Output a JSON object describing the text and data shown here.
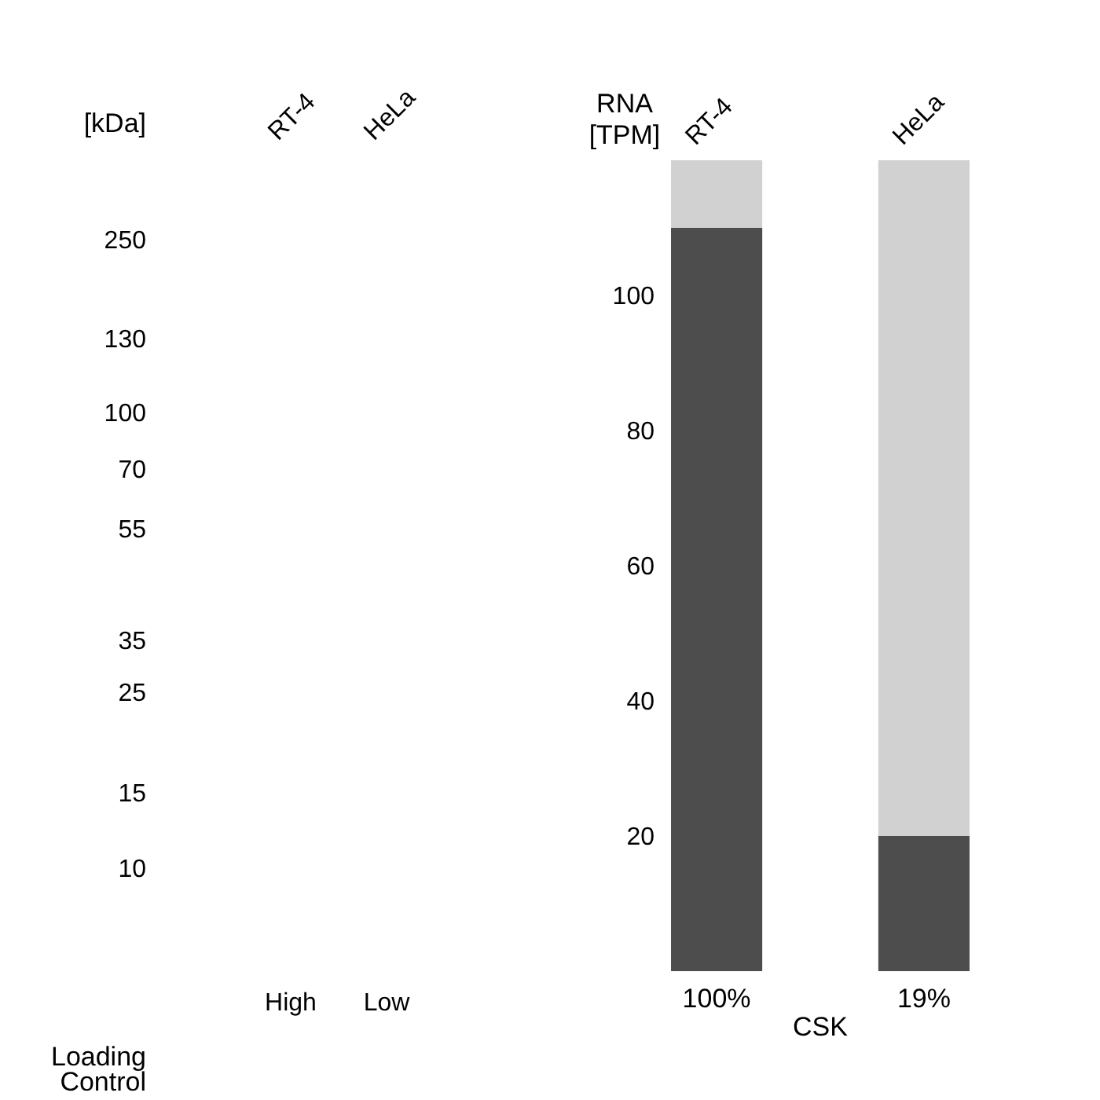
{
  "chart_data": [
    {
      "type": "other",
      "ylabel": "[kDa]",
      "categories": [
        "RT-4",
        "HeLa"
      ],
      "value_labels": [
        "High",
        "Low"
      ],
      "annotations": [
        "250",
        "130",
        "100",
        "70",
        "55",
        "35",
        "25",
        "15",
        "10"
      ]
    },
    {
      "type": "other",
      "ylabel": "Loading Control"
    },
    {
      "type": "bar",
      "stacked": true,
      "ylabel": "RNA [TPM]",
      "xlabel": "CSK",
      "categories": [
        "RT-4",
        "HeLa"
      ],
      "series": [
        {
          "color": "#4d4d4d",
          "values": [
            110,
            20
          ]
        },
        {
          "color": "#d1d1d1",
          "values": [
            10,
            100
          ]
        }
      ],
      "ylim": [
        0,
        120
      ],
      "yticks": [
        20,
        40,
        60,
        80,
        100
      ],
      "annotations": [
        "100%",
        "19%"
      ]
    }
  ]
}
